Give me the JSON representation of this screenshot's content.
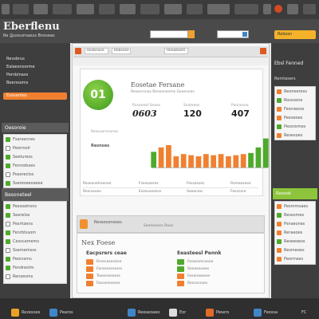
{
  "app": {
    "title": "Eberflenu",
    "subtitle": "Re @uosurnaeus  Bnoseas"
  },
  "topbar": {
    "search_placeholder": "",
    "dropdown_label": "",
    "button_label": "Rebosn"
  },
  "left_nav": {
    "items": [
      "Revsbrus",
      "Ealaesnoorme",
      "Pernbinaxs",
      "Beerssoms"
    ],
    "active_item": "Evosentes",
    "group_title": "Oesoroie",
    "group_rows": [
      "Fsarsecnes",
      "Peorroslr",
      "Seeturess",
      "Fenrodsses",
      "Poserectss",
      "Ssereseeoseee"
    ],
    "section_title": "Besoneteel",
    "section_rows": [
      "Pessoatrons",
      "Seerelos",
      "Pesrhzens",
      "Fenrbtssom",
      "Cesscamems",
      "Ssememsss",
      "Peorssms",
      "Fendrestm",
      "Renzesms"
    ]
  },
  "right_nav": {
    "header": "Ebsl Fenned",
    "link": "Remtasers",
    "rows": [
      "Reoneeress",
      "Rosssene",
      "Fesnseoss",
      "Pesoeoes",
      "Peosromes",
      "Resesoes"
    ],
    "green_label": "Resosk",
    "rows2": [
      "Pesmmoaes",
      "Ressomes",
      "Psnseones",
      "Reraeoes",
      "Reseeoess",
      "Resmeoes",
      "Peormses"
    ]
  },
  "window": {
    "tabs": [
      "Rosbnese",
      "Rebssee",
      "Reeobsem"
    ]
  },
  "dashboard": {
    "badge": "01",
    "title": "Eosetae Fersane",
    "subtitle": "Resonrsnas Renesnenms Geensnes",
    "stats": [
      {
        "label": "Rsseoest Seaos",
        "value": "0603"
      },
      {
        "label": "Ssateoes",
        "value": "120"
      },
      {
        "label": "Pooneseo",
        "value": "407"
      }
    ],
    "chart_label_top": "Reseuarsnones",
    "chart_label": "Resnses",
    "bottom_rows": [
      [
        "Resesnehnerosr",
        "Fsesoseres",
        "Fessosses",
        "Rsmeosese"
      ],
      [
        "Resrasoes",
        "Eereuossens",
        "Seeorsec",
        "Fesscore"
      ]
    ]
  },
  "lower": {
    "bar_left": "Resseosneses",
    "bar_mid": "Semesoers Roos",
    "new_title": "Nex Foese",
    "section_a": {
      "title": "Eacpsrers ceae",
      "items": [
        "Rrescesesisse",
        "Fensssernesss",
        "Tosesseseess",
        "Fassesmeses"
      ]
    },
    "section_b": {
      "title": "Eeasteesl Pennk",
      "items": [
        "Fesassmcesoe",
        "Seneesuees",
        "Feserooeese",
        "Resnssroes"
      ]
    }
  },
  "taskbar": {
    "items": [
      "Rezesoes",
      "Pearos",
      "Reeseoaeo",
      "Eor",
      "Pesers",
      "Feossa"
    ],
    "clock": "FC"
  },
  "colors": {
    "accent_orange": "#f08030",
    "accent_green": "#4faa2c",
    "frame_dark": "#3e3e3e"
  },
  "chart_data": {
    "type": "bar",
    "categories": [
      "1",
      "2",
      "3",
      "4",
      "5",
      "6",
      "7",
      "8",
      "9",
      "10",
      "11",
      "12",
      "13",
      "14",
      "15",
      "16"
    ],
    "values": [
      14,
      18,
      20,
      10,
      12,
      11,
      10,
      12,
      11,
      12,
      10,
      11,
      12,
      13,
      18,
      26
    ],
    "colors": [
      "green",
      "orange",
      "orange",
      "orange",
      "orange",
      "orange",
      "orange",
      "orange",
      "orange",
      "orange",
      "orange",
      "orange",
      "orange",
      "green",
      "green",
      "green"
    ],
    "ylim": [
      0,
      30
    ]
  }
}
